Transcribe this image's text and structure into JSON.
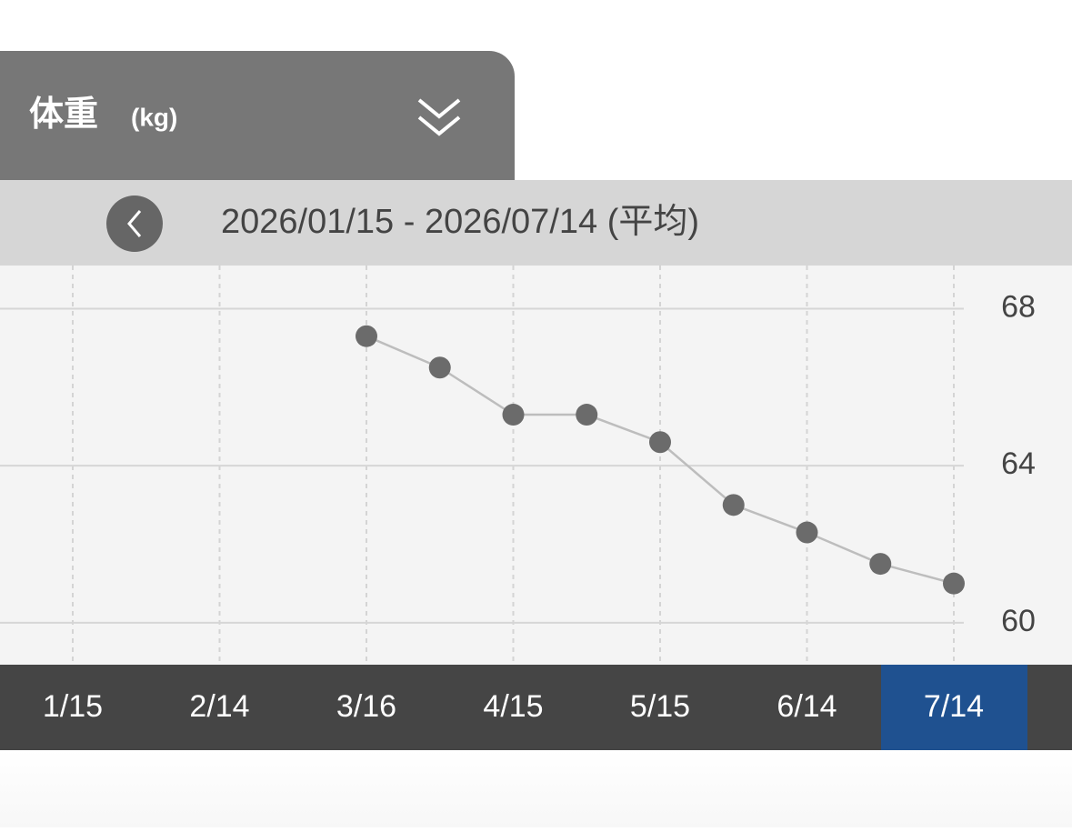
{
  "header": {
    "title": "体重",
    "unit": "(kg)"
  },
  "date_range": "2026/01/15 - 2026/07/14 (平均)",
  "chart_data": {
    "type": "line",
    "categories": [
      "1/15",
      null,
      "2/14",
      null,
      "3/16",
      null,
      "4/15",
      null,
      "5/15",
      null,
      "6/14",
      null,
      "7/14"
    ],
    "values": [
      null,
      null,
      null,
      null,
      67.3,
      66.5,
      65.3,
      65.3,
      64.6,
      63.0,
      62.3,
      61.5,
      61.0
    ],
    "color": "#6b6b6b",
    "line_color": "#bdbdbd",
    "ylim": [
      59,
      69.1
    ],
    "yticks": [
      60,
      64,
      68
    ],
    "grid": true,
    "selected_index": 12
  }
}
